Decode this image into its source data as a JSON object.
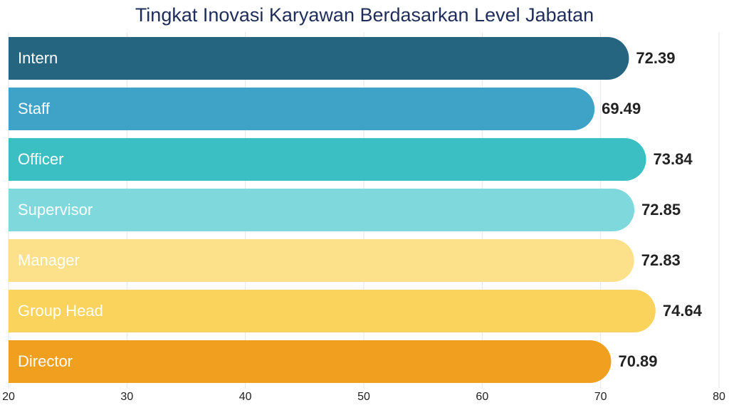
{
  "chart_data": {
    "type": "bar",
    "orientation": "horizontal",
    "title": "Tingkat Inovasi Karyawan Berdasarkan Level Jabatan",
    "categories": [
      "Intern",
      "Staff",
      "Officer",
      "Supervisor",
      "Manager",
      "Group Head",
      "Director"
    ],
    "values": [
      72.39,
      69.49,
      73.84,
      72.85,
      72.83,
      74.64,
      70.89
    ],
    "colors": [
      "#256580",
      "#3fa3c8",
      "#3bbfc3",
      "#7fd9dc",
      "#fde08a",
      "#fad35c",
      "#f0a01e"
    ],
    "xlim": [
      20,
      80
    ],
    "xticks": [
      20,
      30,
      40,
      50,
      60,
      70,
      80
    ],
    "grid": true
  }
}
